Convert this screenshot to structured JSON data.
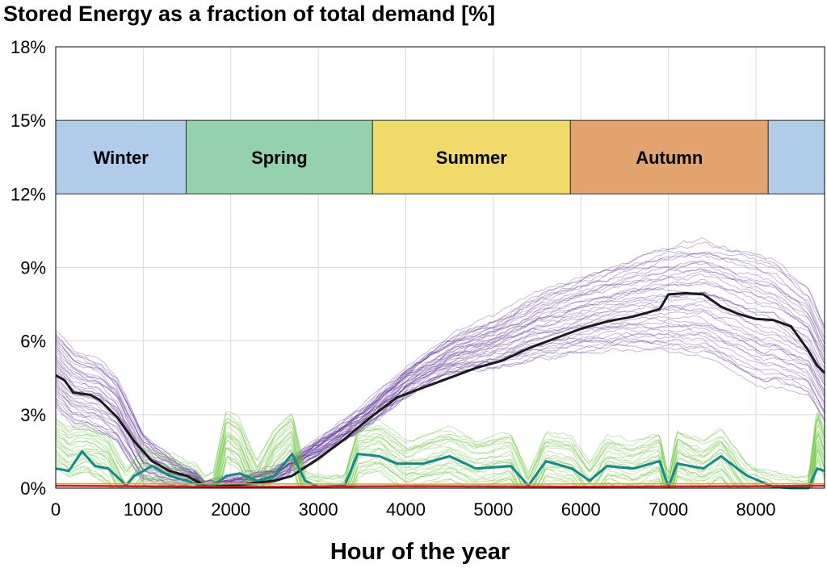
{
  "chart_data": {
    "type": "line",
    "title": "Stored Energy as a fraction of total demand [%]",
    "xlabel": "Hour of the year",
    "ylabel": "",
    "xlim": [
      0,
      8784
    ],
    "ylim": [
      0,
      18
    ],
    "xticks": [
      0,
      1000,
      2000,
      3000,
      4000,
      5000,
      6000,
      7000,
      8000
    ],
    "yticks": [
      0,
      3,
      6,
      9,
      12,
      15,
      18
    ],
    "ytick_labels": [
      "0%",
      "3%",
      "6%",
      "9%",
      "12%",
      "15%",
      "18%"
    ],
    "grid": true,
    "seasons": [
      {
        "label": "Winter",
        "start": 0,
        "end": 1490,
        "color": "#b0cce8"
      },
      {
        "label": "Spring",
        "start": 1490,
        "end": 3620,
        "color": "#94d1ac"
      },
      {
        "label": "Summer",
        "start": 3620,
        "end": 5880,
        "color": "#efda6a"
      },
      {
        "label": "Autumn",
        "start": 5880,
        "end": 8140,
        "color": "#e3a36e"
      },
      {
        "label": "",
        "start": 8140,
        "end": 8784,
        "color": "#b0cce8"
      }
    ],
    "season_band_y": [
      12,
      15
    ],
    "ensembles": [
      {
        "key": "purple",
        "color": "#5b2d96",
        "opacity": 0.35,
        "members": 40,
        "base": [
          [
            0,
            5.8
          ],
          [
            200,
            5.0
          ],
          [
            500,
            4.6
          ],
          [
            700,
            3.9
          ],
          [
            1000,
            1.8
          ],
          [
            1400,
            0.8
          ],
          [
            1600,
            0.5
          ],
          [
            1700,
            0.1
          ],
          [
            2000,
            0.2
          ],
          [
            2500,
            0.6
          ],
          [
            3000,
            1.7
          ],
          [
            3500,
            2.9
          ],
          [
            4000,
            4.6
          ],
          [
            4500,
            5.8
          ],
          [
            5000,
            6.6
          ],
          [
            5500,
            7.6
          ],
          [
            6000,
            8.3
          ],
          [
            6500,
            8.9
          ],
          [
            7000,
            9.5
          ],
          [
            7400,
            9.8
          ],
          [
            7800,
            9.4
          ],
          [
            8200,
            9.0
          ],
          [
            8600,
            7.8
          ],
          [
            8784,
            6.3
          ]
        ],
        "spread_top": [
          [
            0,
            0.6
          ],
          [
            700,
            0.6
          ],
          [
            1700,
            0.1
          ],
          [
            3000,
            0.3
          ],
          [
            8784,
            0.3
          ]
        ],
        "spread_bottom": [
          [
            0,
            2.5
          ],
          [
            500,
            2.3
          ],
          [
            1000,
            1.6
          ],
          [
            1700,
            0.1
          ],
          [
            2800,
            0.4
          ],
          [
            3500,
            0.5
          ],
          [
            4500,
            1.2
          ],
          [
            5500,
            2.3
          ],
          [
            6500,
            3.2
          ],
          [
            7200,
            4.2
          ],
          [
            8100,
            5.0
          ],
          [
            8784,
            3.7
          ]
        ]
      },
      {
        "key": "green",
        "color": "#62c230",
        "opacity": 0.4,
        "members": 25,
        "base": [
          [
            0,
            2.4
          ],
          [
            150,
            1.9
          ],
          [
            350,
            2.1
          ],
          [
            600,
            1.6
          ],
          [
            800,
            0.2
          ],
          [
            1000,
            1.1
          ],
          [
            1300,
            0.8
          ],
          [
            1600,
            0.5
          ],
          [
            1700,
            0
          ],
          [
            1800,
            0.1
          ],
          [
            1950,
            2.6
          ],
          [
            2100,
            2.2
          ],
          [
            2300,
            0.5
          ],
          [
            2500,
            1.9
          ],
          [
            2700,
            2.6
          ],
          [
            2850,
            0.2
          ],
          [
            3000,
            0.1
          ],
          [
            3300,
            0.1
          ],
          [
            3450,
            2.0
          ],
          [
            3700,
            2.2
          ],
          [
            4000,
            1.4
          ],
          [
            4500,
            1.9
          ],
          [
            4800,
            1.4
          ],
          [
            5200,
            1.7
          ],
          [
            5400,
            0.1
          ],
          [
            5600,
            1.7
          ],
          [
            5900,
            1.5
          ],
          [
            6100,
            0.5
          ],
          [
            6300,
            1.6
          ],
          [
            6600,
            1.3
          ],
          [
            6900,
            1.8
          ],
          [
            7000,
            0.1
          ],
          [
            7100,
            1.9
          ],
          [
            7400,
            1.4
          ],
          [
            7600,
            1.9
          ],
          [
            7900,
            0.5
          ],
          [
            8200,
            0.1
          ],
          [
            8400,
            0
          ],
          [
            8600,
            0
          ],
          [
            8700,
            2.8
          ],
          [
            8784,
            1.9
          ]
        ],
        "spread_top": [
          [
            0,
            0.5
          ],
          [
            8784,
            0.5
          ]
        ],
        "spread_bottom": [
          [
            0,
            1.5
          ],
          [
            8784,
            1.5
          ]
        ]
      }
    ],
    "series": [
      {
        "key": "median-black",
        "color": "#1a1a1a",
        "width": 3,
        "points": [
          [
            0,
            4.6
          ],
          [
            100,
            4.4
          ],
          [
            200,
            3.9
          ],
          [
            400,
            3.8
          ],
          [
            500,
            3.6
          ],
          [
            700,
            2.9
          ],
          [
            900,
            1.9
          ],
          [
            1100,
            1.1
          ],
          [
            1300,
            0.7
          ],
          [
            1500,
            0.5
          ],
          [
            1650,
            0.2
          ],
          [
            1700,
            0.05
          ],
          [
            2000,
            0.1
          ],
          [
            2500,
            0.3
          ],
          [
            2700,
            0.5
          ],
          [
            3000,
            1.2
          ],
          [
            3300,
            2.0
          ],
          [
            3600,
            2.9
          ],
          [
            3900,
            3.7
          ],
          [
            4200,
            4.1
          ],
          [
            4500,
            4.5
          ],
          [
            4800,
            4.9
          ],
          [
            5100,
            5.2
          ],
          [
            5400,
            5.7
          ],
          [
            5700,
            6.1
          ],
          [
            6000,
            6.5
          ],
          [
            6300,
            6.8
          ],
          [
            6600,
            7.0
          ],
          [
            6900,
            7.3
          ],
          [
            7000,
            7.9
          ],
          [
            7200,
            7.95
          ],
          [
            7400,
            7.9
          ],
          [
            7600,
            7.4
          ],
          [
            7800,
            7.1
          ],
          [
            8000,
            6.9
          ],
          [
            8200,
            6.85
          ],
          [
            8400,
            6.6
          ],
          [
            8600,
            5.6
          ],
          [
            8700,
            5.0
          ],
          [
            8784,
            4.7
          ]
        ]
      },
      {
        "key": "median-teal",
        "color": "#118a8c",
        "width": 3,
        "points": [
          [
            0,
            0.8
          ],
          [
            150,
            0.7
          ],
          [
            300,
            1.5
          ],
          [
            450,
            0.9
          ],
          [
            600,
            0.8
          ],
          [
            750,
            0.3
          ],
          [
            800,
            0.1
          ],
          [
            900,
            0.5
          ],
          [
            1100,
            0.9
          ],
          [
            1300,
            0.5
          ],
          [
            1500,
            0.3
          ],
          [
            1700,
            0.05
          ],
          [
            1800,
            0.1
          ],
          [
            1950,
            0.5
          ],
          [
            2100,
            0.6
          ],
          [
            2300,
            0.3
          ],
          [
            2500,
            0.5
          ],
          [
            2700,
            1.4
          ],
          [
            2850,
            0.3
          ],
          [
            3000,
            0.05
          ],
          [
            3300,
            0.1
          ],
          [
            3450,
            1.4
          ],
          [
            3700,
            1.3
          ],
          [
            3900,
            1.0
          ],
          [
            4200,
            1.0
          ],
          [
            4500,
            1.3
          ],
          [
            4800,
            0.8
          ],
          [
            5200,
            0.9
          ],
          [
            5400,
            0.1
          ],
          [
            5600,
            1.1
          ],
          [
            5900,
            0.8
          ],
          [
            6100,
            0.3
          ],
          [
            6300,
            0.9
          ],
          [
            6600,
            0.8
          ],
          [
            6900,
            1.1
          ],
          [
            7000,
            0.05
          ],
          [
            7100,
            1.0
          ],
          [
            7400,
            0.8
          ],
          [
            7600,
            1.3
          ],
          [
            7900,
            0.5
          ],
          [
            8200,
            0.05
          ],
          [
            8400,
            0
          ],
          [
            8600,
            0
          ],
          [
            8700,
            0.8
          ],
          [
            8784,
            0.7
          ]
        ]
      },
      {
        "key": "red",
        "color": "#c81e28",
        "width": 2.5,
        "points": [
          [
            0,
            0.1
          ],
          [
            2000,
            0.05
          ],
          [
            4000,
            0.08
          ],
          [
            6000,
            0.06
          ],
          [
            8000,
            0.08
          ],
          [
            8784,
            0.1
          ]
        ]
      },
      {
        "key": "orange",
        "color": "#e0a020",
        "width": 1.5,
        "points": [
          [
            0,
            0.18
          ],
          [
            4000,
            0.16
          ],
          [
            8784,
            0.18
          ]
        ]
      }
    ]
  }
}
